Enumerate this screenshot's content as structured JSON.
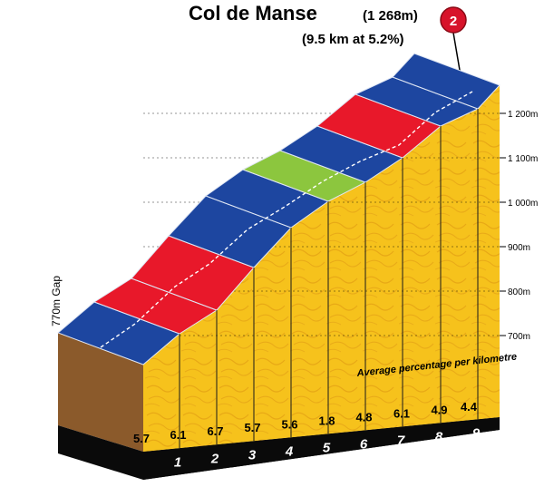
{
  "chart_data": {
    "type": "area",
    "title": "Col de Manse",
    "altitude_label": "(1 268m)",
    "subtitle": "(9.5 km at 5.2%)",
    "category_badge": "2",
    "gap_label": "770m Gap",
    "avg_note": "Average percentage per kilometre",
    "y_ticks": [
      "700m",
      "800m",
      "900m",
      "1 000m",
      "1 100m",
      "1 200m"
    ],
    "y_tick_values": [
      700,
      800,
      900,
      1000,
      1100,
      1200
    ],
    "ylim": [
      700,
      1268
    ],
    "base_altitude": 700,
    "summit_altitude": 1268,
    "km_labels": [
      "1",
      "2",
      "3",
      "4",
      "5",
      "6",
      "7",
      "8",
      "9"
    ],
    "percentages": [
      "5.7",
      "6.1",
      "6.7",
      "5.7",
      "5.6",
      "1.8",
      "4.8",
      "6.1",
      "4.9",
      "4.4"
    ],
    "pct_values": [
      5.7,
      6.1,
      6.7,
      5.7,
      5.6,
      1.8,
      4.8,
      6.1,
      4.9,
      4.4
    ],
    "segment_colors": [
      "#1d46a0",
      "#e8182a",
      "#e8182a",
      "#1d46a0",
      "#1d46a0",
      "#8cc63e",
      "#1d46a0",
      "#e8182a",
      "#1d46a0",
      "#1d46a0"
    ],
    "colors": {
      "blue": "#1d46a0",
      "red": "#e8182a",
      "green": "#8cc63e",
      "yellow": "#f7c61f",
      "brown": "#8b5a2b",
      "base": "#0a0a0a",
      "badge": "#d7132a"
    }
  }
}
